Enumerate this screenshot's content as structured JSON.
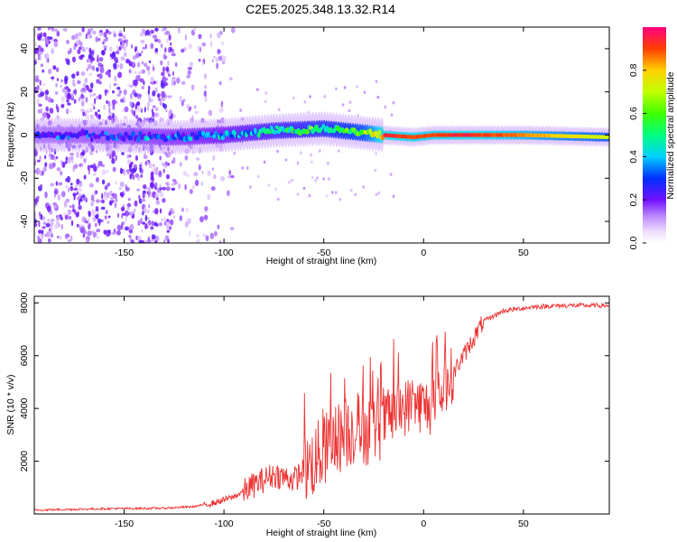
{
  "figure_title": "C2E5.2025.348.13.32.R14",
  "chart_data": [
    {
      "type": "heatmap",
      "title": "C2E5.2025.348.13.32.R14",
      "xlabel": "Height of straight line (km)",
      "ylabel": "Frequency (Hz)",
      "xlim": [
        -195,
        93
      ],
      "ylim": [
        -50,
        50
      ],
      "x_ticks": [
        -150,
        -100,
        -50,
        0,
        50
      ],
      "y_ticks": [
        -40,
        -20,
        0,
        20,
        40
      ],
      "colorbar": {
        "label": "Normalized spectral amplitude",
        "range": [
          0.0,
          1.0
        ],
        "ticks": [
          0.0,
          0.2,
          0.4,
          0.6,
          0.8
        ],
        "tick_labels": [
          "0.0",
          "0.2",
          "0.4",
          "0.6",
          "0.8"
        ]
      },
      "ridge": {
        "description_points_x": [
          -195,
          -165,
          -125,
          -100,
          -75,
          -50,
          -30,
          -20,
          -5,
          5,
          20,
          50,
          93
        ],
        "frequency_hz": [
          0,
          0,
          -1,
          0,
          2,
          3,
          1,
          0,
          -1,
          0,
          0,
          0,
          -1
        ],
        "peak_amplitude": [
          0.3,
          0.35,
          0.4,
          0.45,
          0.55,
          0.6,
          0.7,
          0.95,
          0.9,
          0.9,
          0.95,
          0.85,
          0.7
        ]
      }
    },
    {
      "type": "line",
      "xlabel": "Height of straight line (km)",
      "ylabel": "SNR (10 * v/v)",
      "xlim": [
        -195,
        93
      ],
      "ylim": [
        0,
        8250
      ],
      "x_ticks": [
        -150,
        -100,
        -50,
        0,
        50
      ],
      "y_ticks": [
        2000,
        4000,
        6000,
        8000
      ],
      "series": [
        {
          "name": "SNR",
          "color": "#ee3333",
          "x": [
            -195,
            -160,
            -130,
            -115,
            -105,
            -95,
            -85,
            -75,
            -65,
            -55,
            -45,
            -35,
            -25,
            -15,
            -5,
            5,
            12,
            20,
            30,
            40,
            55,
            70,
            93
          ],
          "values": [
            150,
            200,
            220,
            280,
            420,
            650,
            1100,
            1500,
            1300,
            2000,
            2800,
            3200,
            3200,
            3800,
            4200,
            4000,
            5000,
            6000,
            7300,
            7700,
            7850,
            7900,
            7900
          ]
        }
      ]
    }
  ]
}
